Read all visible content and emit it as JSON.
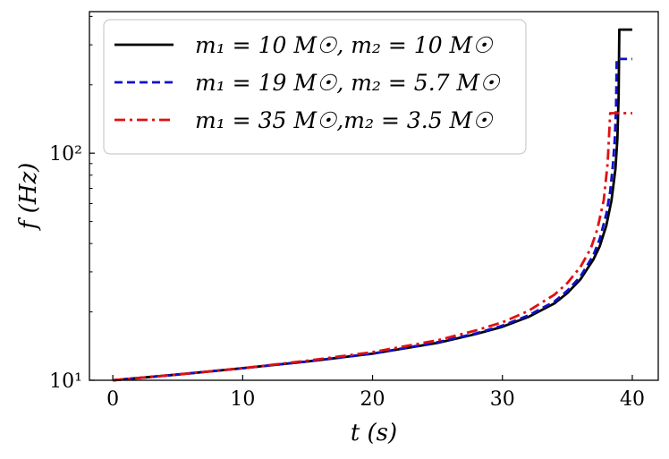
{
  "chart_data": {
    "type": "line",
    "xlabel": "t (s)",
    "ylabel": "f (Hz)",
    "xlim": [
      -1.8,
      42
    ],
    "ylim": [
      10,
      420
    ],
    "yscale": "log",
    "xticks": [
      0,
      10,
      20,
      30,
      40
    ],
    "xtick_labels": [
      "0",
      "10",
      "20",
      "30",
      "40"
    ],
    "yticks": [
      10,
      100
    ],
    "ytick_labels": [
      "10¹",
      "10²"
    ],
    "grid": false,
    "legend_position": "top-left",
    "series": [
      {
        "name": "m₁ = 10 M☉, m₂ = 10 M☉",
        "color": "#000000",
        "dash": "solid",
        "x": [
          0,
          5,
          10,
          15,
          20,
          25,
          28,
          30,
          32,
          34,
          35,
          36,
          37,
          37.5,
          38,
          38.4,
          38.7,
          38.85,
          38.95,
          39.0,
          39.0,
          40.0
        ],
        "y": [
          10,
          10.6,
          11.3,
          12.1,
          13.1,
          14.6,
          16.0,
          17.2,
          19.0,
          21.8,
          24.2,
          27.8,
          34,
          39,
          48,
          62,
          85,
          115,
          180,
          350,
          350,
          350
        ]
      },
      {
        "name": "m₁ = 19 M☉, m₂ = 5.7 M☉",
        "color": "#1010cc",
        "dash": "dashed",
        "x": [
          0,
          5,
          10,
          15,
          20,
          25,
          28,
          30,
          32,
          34,
          35,
          36,
          37,
          37.5,
          38,
          38.3,
          38.5,
          38.65,
          38.75,
          38.8,
          38.8,
          40.0
        ],
        "y": [
          10,
          10.6,
          11.3,
          12.1,
          13.1,
          14.7,
          16.1,
          17.4,
          19.3,
          22.2,
          24.8,
          28.6,
          35.5,
          42,
          54,
          68,
          88,
          115,
          160,
          260,
          260,
          260
        ]
      },
      {
        "name": "m₁ = 35 M☉,m₂ = 3.5 M☉",
        "color": "#e01010",
        "dash": "dashdot",
        "x": [
          0,
          5,
          10,
          15,
          20,
          25,
          28,
          30,
          32,
          34,
          35,
          36,
          36.8,
          37.3,
          37.8,
          38.1,
          38.3,
          38.3,
          40.0
        ],
        "y": [
          10,
          10.6,
          11.3,
          12.2,
          13.3,
          15.0,
          16.6,
          18.0,
          20.2,
          23.8,
          26.8,
          31.5,
          38,
          46,
          62,
          90,
          150,
          150,
          150
        ]
      }
    ]
  }
}
